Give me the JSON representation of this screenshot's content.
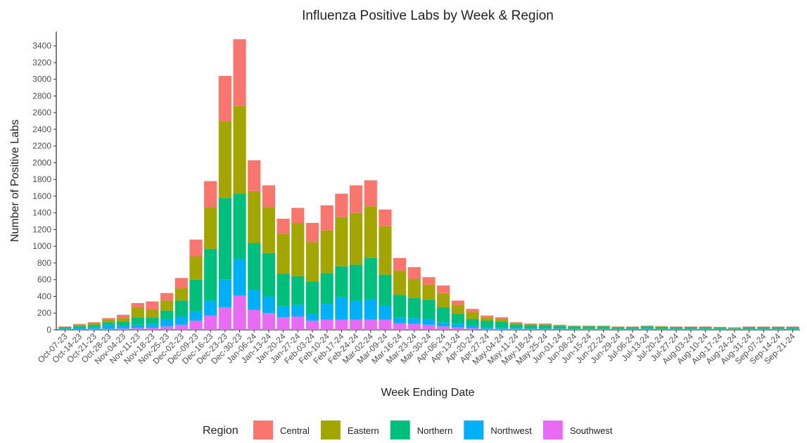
{
  "chart_data": {
    "type": "stacked_bar",
    "title": "Influenza Positive Labs by Week & Region",
    "x_label": "Week Ending Date",
    "y_label": "Number of Positive Labs",
    "legend_title": "Region",
    "categories": [
      "Oct-07-23",
      "Oct-14-23",
      "Oct-21-23",
      "Oct-28-23",
      "Nov-04-23",
      "Nov-11-23",
      "Nov-18-23",
      "Nov-25-23",
      "Dec-02-23",
      "Dec-09-23",
      "Dec-16-23",
      "Dec-23-23",
      "Dec-30-23",
      "Jan-06-24",
      "Jan-13-24",
      "Jan-20-24",
      "Jan-27-24",
      "Feb-03-24",
      "Feb-10-24",
      "Feb-17-24",
      "Feb-24-24",
      "Mar-02-24",
      "Mar-09-24",
      "Mar-16-24",
      "Mar-23-24",
      "Mar-30-24",
      "Apr-06-24",
      "Apr-13-24",
      "Apr-20-24",
      "Apr-27-24",
      "May-04-24",
      "May-11-24",
      "May-18-24",
      "May-25-24",
      "Jun-01-24",
      "Jun-08-24",
      "Jun-15-24",
      "Jun-22-24",
      "Jun-29-24",
      "Jul-06-24",
      "Jul-13-24",
      "Jul-20-24",
      "Jul-27-24",
      "Aug-03-24",
      "Aug-10-24",
      "Aug-17-24",
      "Aug-24-24",
      "Aug-31-24",
      "Sep-07-24",
      "Sep-14-24",
      "Sep-21-24"
    ],
    "series": [
      {
        "name": "Central",
        "color": "#F8766D",
        "values": [
          5,
          10,
          10,
          15,
          40,
          50,
          100,
          90,
          120,
          200,
          310,
          540,
          800,
          370,
          260,
          180,
          180,
          230,
          300,
          280,
          330,
          310,
          200,
          150,
          140,
          90,
          90,
          50,
          40,
          20,
          20,
          10,
          10,
          10,
          5,
          5,
          5,
          5,
          5,
          5,
          5,
          5,
          5,
          5,
          5,
          5,
          5,
          5,
          5,
          5,
          5
        ]
      },
      {
        "name": "Eastern",
        "color": "#A3A500",
        "values": [
          5,
          15,
          20,
          35,
          40,
          120,
          90,
          120,
          150,
          280,
          500,
          920,
          1050,
          620,
          550,
          480,
          640,
          470,
          510,
          590,
          620,
          620,
          580,
          290,
          230,
          180,
          170,
          110,
          80,
          40,
          30,
          15,
          10,
          10,
          10,
          5,
          5,
          5,
          5,
          5,
          5,
          5,
          5,
          5,
          5,
          5,
          5,
          5,
          5,
          5,
          5
        ]
      },
      {
        "name": "Northern",
        "color": "#00BF7D",
        "values": [
          15,
          20,
          25,
          30,
          50,
          90,
          80,
          100,
          190,
          380,
          620,
          980,
          780,
          560,
          520,
          390,
          340,
          390,
          370,
          370,
          430,
          490,
          370,
          270,
          240,
          230,
          180,
          120,
          80,
          80,
          70,
          45,
          40,
          40,
          30,
          30,
          30,
          30,
          20,
          20,
          25,
          25,
          20,
          20,
          20,
          15,
          10,
          20,
          20,
          20,
          20
        ]
      },
      {
        "name": "Northwest",
        "color": "#00B0F6",
        "values": [
          10,
          20,
          25,
          50,
          35,
          40,
          45,
          90,
          100,
          110,
          180,
          330,
          440,
          240,
          200,
          130,
          140,
          80,
          190,
          270,
          230,
          250,
          170,
          70,
          70,
          70,
          50,
          40,
          30,
          20,
          20,
          10,
          10,
          10,
          10,
          5,
          5,
          5,
          5,
          5,
          10,
          5,
          5,
          5,
          5,
          5,
          5,
          5,
          5,
          5,
          5
        ]
      },
      {
        "name": "Southwest",
        "color": "#E76BF3",
        "values": [
          5,
          5,
          10,
          10,
          15,
          20,
          25,
          40,
          60,
          110,
          170,
          270,
          410,
          240,
          200,
          150,
          160,
          110,
          120,
          120,
          120,
          120,
          120,
          80,
          70,
          60,
          40,
          30,
          20,
          10,
          10,
          10,
          5,
          5,
          5,
          5,
          5,
          5,
          5,
          5,
          5,
          5,
          5,
          5,
          5,
          5,
          5,
          5,
          5,
          5,
          5
        ]
      }
    ],
    "ylim": [
      0,
      3570
    ],
    "yticks": [
      0,
      200,
      400,
      600,
      800,
      1000,
      1200,
      1400,
      1600,
      1800,
      2000,
      2200,
      2400,
      2600,
      2800,
      3000,
      3200,
      3400
    ]
  }
}
